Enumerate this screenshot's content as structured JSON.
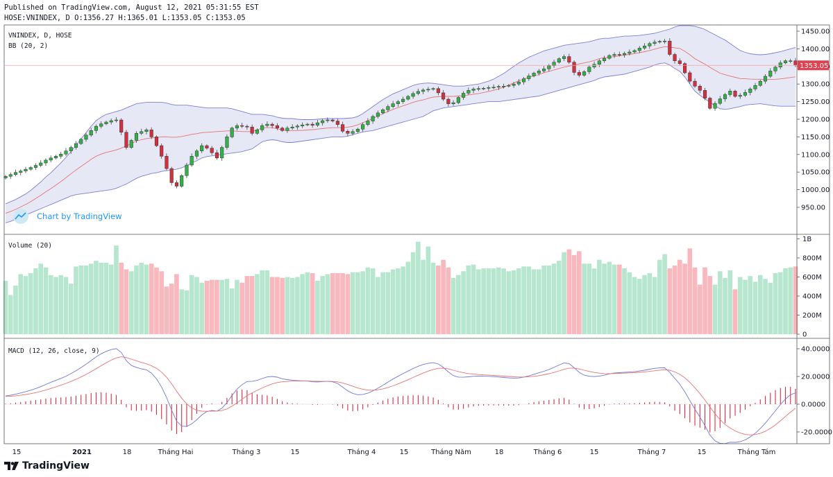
{
  "header": {
    "line1": "Published on TradingView.com, August 12, 2021 05:31:55 EST",
    "line2": "HOSE:VNINDEX, D O:1356.27 H:1365.01 L:1353.05 C:1353.05"
  },
  "footer": {
    "brand": "TradingView"
  },
  "watermark": "Chart by TradingView",
  "colors": {
    "up": "#26a69a",
    "upbody": "#2fb344",
    "down": "#d32f3f",
    "volUp": "#b7e6cf",
    "volDown": "#f8b8bd",
    "bb": "#7b7fd1",
    "bbFill": "#dfe0f3",
    "basis": "#e57373",
    "macd": "#6e77d9",
    "signal": "#e57373"
  },
  "chart_data": [
    {
      "type": "candlestick",
      "legend": [
        "VNINDEX, D, HOSE",
        "BB (20, 2)"
      ],
      "ylim": [
        920,
        1480
      ],
      "yticks": [
        "1450.00",
        "1400.00",
        "1350.00",
        "1300.00",
        "1250.00",
        "1200.00",
        "1150.00",
        "1100.00",
        "1050.00",
        "1000.00",
        "950.00"
      ],
      "last_price_label": "1353.05",
      "closes": [
        1038,
        1043,
        1049,
        1053,
        1058,
        1063,
        1069,
        1076,
        1084,
        1090,
        1095,
        1101,
        1110,
        1120,
        1131,
        1143,
        1155,
        1168,
        1180,
        1187,
        1192,
        1196,
        1198,
        1163,
        1120,
        1140,
        1160,
        1165,
        1170,
        1150,
        1125,
        1095,
        1060,
        1020,
        1010,
        1040,
        1070,
        1095,
        1110,
        1125,
        1118,
        1105,
        1090,
        1120,
        1150,
        1175,
        1182,
        1180,
        1178,
        1160,
        1170,
        1182,
        1186,
        1182,
        1175,
        1168,
        1175,
        1178,
        1181,
        1184,
        1186,
        1183,
        1190,
        1196,
        1198,
        1195,
        1185,
        1166,
        1160,
        1165,
        1172,
        1185,
        1195,
        1208,
        1218,
        1227,
        1236,
        1244,
        1250,
        1257,
        1265,
        1273,
        1279,
        1283,
        1285,
        1287,
        1275,
        1257,
        1244,
        1247,
        1262,
        1274,
        1282,
        1286,
        1287,
        1288,
        1290,
        1291,
        1293,
        1294,
        1296,
        1300,
        1306,
        1315,
        1323,
        1331,
        1337,
        1343,
        1352,
        1362,
        1372,
        1378,
        1362,
        1333,
        1325,
        1335,
        1348,
        1356,
        1366,
        1373,
        1381,
        1384,
        1383,
        1387,
        1391,
        1395,
        1402,
        1408,
        1415,
        1419,
        1421,
        1422,
        1384,
        1366,
        1358,
        1332,
        1308,
        1294,
        1282,
        1260,
        1231,
        1245,
        1258,
        1270,
        1280,
        1265,
        1268,
        1276,
        1286,
        1296,
        1308,
        1322,
        1337,
        1348,
        1360,
        1366,
        1366,
        1353
      ],
      "bb_upper": [
        960,
        966,
        972,
        980,
        988,
        998,
        1010,
        1022,
        1036,
        1048,
        1062,
        1076,
        1092,
        1108,
        1126,
        1144,
        1162,
        1180,
        1196,
        1206,
        1214,
        1218,
        1222,
        1226,
        1232,
        1238,
        1244,
        1246,
        1248,
        1248,
        1248,
        1248,
        1246,
        1242,
        1240,
        1240,
        1240,
        1238,
        1236,
        1234,
        1232,
        1232,
        1232,
        1232,
        1232,
        1230,
        1226,
        1222,
        1218,
        1214,
        1214,
        1214,
        1212,
        1210,
        1206,
        1203,
        1202,
        1202,
        1200,
        1199,
        1199,
        1199,
        1200,
        1201,
        1202,
        1202,
        1202,
        1202,
        1203,
        1204,
        1208,
        1216,
        1226,
        1236,
        1246,
        1256,
        1264,
        1272,
        1278,
        1284,
        1290,
        1296,
        1300,
        1302,
        1303,
        1302,
        1300,
        1298,
        1296,
        1294,
        1294,
        1294,
        1296,
        1298,
        1300,
        1304,
        1308,
        1314,
        1322,
        1330,
        1340,
        1350,
        1360,
        1368,
        1376,
        1382,
        1388,
        1394,
        1398,
        1402,
        1406,
        1410,
        1412,
        1414,
        1416,
        1418,
        1420,
        1424,
        1428,
        1430,
        1430,
        1432,
        1434,
        1436,
        1436,
        1437,
        1438,
        1440,
        1442,
        1444,
        1448,
        1452,
        1456,
        1462,
        1466,
        1466,
        1466,
        1464,
        1460,
        1455,
        1447,
        1440,
        1432,
        1425,
        1415,
        1405,
        1395,
        1390,
        1386,
        1384,
        1383,
        1384,
        1386,
        1389,
        1392,
        1396,
        1400,
        1404
      ],
      "bb_lower": [
        906,
        910,
        916,
        922,
        928,
        934,
        940,
        946,
        952,
        958,
        964,
        970,
        976,
        982,
        986,
        988,
        990,
        992,
        994,
        996,
        998,
        1000,
        1004,
        1010,
        1016,
        1024,
        1032,
        1038,
        1042,
        1046,
        1048,
        1052,
        1054,
        1056,
        1058,
        1062,
        1068,
        1076,
        1082,
        1090,
        1094,
        1096,
        1098,
        1100,
        1102,
        1104,
        1106,
        1108,
        1112,
        1116,
        1126,
        1136,
        1140,
        1142,
        1140,
        1136,
        1134,
        1134,
        1136,
        1138,
        1140,
        1142,
        1144,
        1146,
        1148,
        1150,
        1150,
        1150,
        1152,
        1156,
        1160,
        1164,
        1166,
        1168,
        1172,
        1176,
        1180,
        1184,
        1188,
        1192,
        1196,
        1200,
        1204,
        1208,
        1216,
        1224,
        1228,
        1232,
        1234,
        1236,
        1238,
        1240,
        1242,
        1244,
        1246,
        1248,
        1250,
        1250,
        1250,
        1252,
        1254,
        1256,
        1258,
        1260,
        1262,
        1264,
        1266,
        1270,
        1274,
        1278,
        1282,
        1286,
        1290,
        1294,
        1298,
        1302,
        1306,
        1310,
        1316,
        1320,
        1322,
        1324,
        1326,
        1328,
        1332,
        1336,
        1340,
        1344,
        1348,
        1354,
        1358,
        1360,
        1354,
        1344,
        1336,
        1320,
        1300,
        1280,
        1268,
        1258,
        1248,
        1238,
        1230,
        1228,
        1230,
        1233,
        1236,
        1240,
        1242,
        1243,
        1244,
        1242,
        1240,
        1238,
        1237,
        1237,
        1237,
        1237,
        1237
      ],
      "volume_ylim": [
        0,
        1000000000
      ],
      "volume_yticks": [
        "1B",
        "800M",
        "600M",
        "400M",
        "200M",
        "0"
      ],
      "volume": [
        560,
        410,
        510,
        630,
        610,
        640,
        690,
        740,
        700,
        620,
        600,
        620,
        600,
        530,
        710,
        720,
        720,
        740,
        770,
        750,
        750,
        730,
        930,
        750,
        680,
        660,
        720,
        750,
        730,
        740,
        700,
        660,
        500,
        530,
        630,
        470,
        460,
        620,
        600,
        540,
        560,
        570,
        570,
        570,
        580,
        480,
        570,
        540,
        610,
        610,
        630,
        670,
        670,
        600,
        600,
        590,
        600,
        590,
        600,
        630,
        650,
        640,
        560,
        610,
        630,
        640,
        640,
        640,
        630,
        650,
        650,
        660,
        700,
        690,
        600,
        650,
        650,
        680,
        690,
        710,
        760,
        860,
        970,
        780,
        920,
        750,
        720,
        780,
        700,
        590,
        620,
        660,
        720,
        730,
        680,
        690,
        690,
        690,
        700,
        690,
        660,
        670,
        690,
        710,
        710,
        680,
        680,
        720,
        720,
        740,
        770,
        860,
        890,
        830,
        870,
        740,
        740,
        690,
        780,
        740,
        760,
        730,
        730,
        690,
        650,
        600,
        580,
        620,
        640,
        600,
        780,
        840,
        690,
        720,
        780,
        740,
        900,
        700,
        520,
        700,
        610,
        520,
        660,
        590,
        670,
        470,
        600,
        570,
        610,
        550,
        620,
        580,
        540,
        640,
        650,
        690,
        700,
        710,
        780,
        750
      ],
      "macd_ylim": [
        -28,
        44
      ],
      "macd_yticks": [
        "40.0000",
        "20.0000",
        "0.0000",
        "-20.0000"
      ],
      "macd_legend": "MACD (12, 26, close, 9)",
      "x_labels": [
        "15",
        "2021",
        "18",
        "Tháng Hai",
        "Tháng 3",
        "15",
        "Tháng 4",
        "15",
        "Tháng Năm",
        "18",
        "Tháng 6",
        "15",
        "Tháng 7",
        "15",
        "Tháng Tám"
      ]
    }
  ]
}
